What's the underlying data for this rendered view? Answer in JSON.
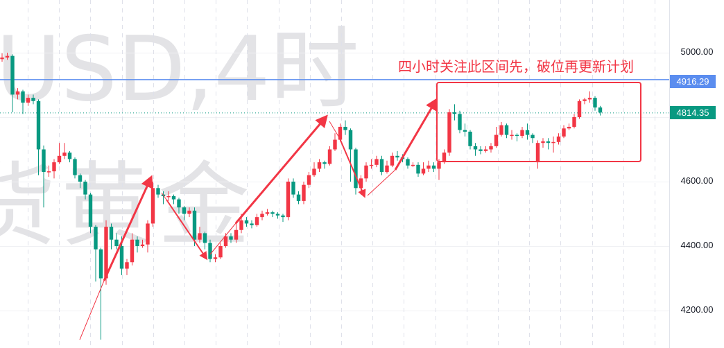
{
  "watermark": {
    "line1": "USD,4时",
    "line2": "货黄金"
  },
  "annotation": "四小时关注此区间先，破位再更新计划",
  "colors": {
    "up": "#f23645",
    "down": "#089981",
    "annotation": "#f23645",
    "resistance_line": "#5b8def",
    "last_price": "#089981"
  },
  "chart_data": {
    "type": "candlestick",
    "ylim": [
      4090,
      5160
    ],
    "y_ticks": [
      "5000.00",
      "4600.00",
      "4400.00",
      "4200.00"
    ],
    "y_tick_values": [
      5000,
      4600,
      4400,
      4200
    ],
    "grid": true,
    "convention": "red up, green down",
    "horizontal_line": {
      "value": 4916.29,
      "label": "4916.29"
    },
    "last_price": {
      "value": 4814.35,
      "label": "4814.35"
    },
    "zone": {
      "top": 4916,
      "bottom": 4670
    },
    "candles_ohlc": [
      [
        4980,
        4998,
        4972,
        4985
      ],
      [
        4985,
        5000,
        4978,
        4990
      ],
      [
        4990,
        4995,
        4815,
        4870
      ],
      [
        4870,
        4890,
        4855,
        4880
      ],
      [
        4880,
        4885,
        4810,
        4845
      ],
      [
        4845,
        4870,
        4835,
        4860
      ],
      [
        4860,
        4870,
        4840,
        4850
      ],
      [
        4850,
        4855,
        4620,
        4700
      ],
      [
        4700,
        4712,
        4520,
        4630
      ],
      [
        4630,
        4650,
        4615,
        4632
      ],
      [
        4632,
        4670,
        4610,
        4660
      ],
      [
        4660,
        4720,
        4655,
        4680
      ],
      [
        4680,
        4720,
        4670,
        4690
      ],
      [
        4690,
        4695,
        4660,
        4670
      ],
      [
        4670,
        4675,
        4610,
        4620
      ],
      [
        4620,
        4625,
        4580,
        4600
      ],
      [
        4600,
        4605,
        4545,
        4560
      ],
      [
        4560,
        4565,
        4440,
        4460
      ],
      [
        4460,
        4465,
        4290,
        4390
      ],
      [
        4390,
        4395,
        4110,
        4300
      ],
      [
        4300,
        4480,
        4280,
        4460
      ],
      [
        4460,
        4470,
        4390,
        4420
      ],
      [
        4420,
        4440,
        4390,
        4400
      ],
      [
        4400,
        4430,
        4310,
        4330
      ],
      [
        4330,
        4360,
        4310,
        4350
      ],
      [
        4350,
        4440,
        4340,
        4420
      ],
      [
        4420,
        4430,
        4380,
        4400
      ],
      [
        4400,
        4420,
        4395,
        4405
      ],
      [
        4405,
        4480,
        4380,
        4470
      ],
      [
        4470,
        4600,
        4460,
        4580
      ],
      [
        4580,
        4590,
        4550,
        4560
      ],
      [
        4560,
        4570,
        4530,
        4555
      ],
      [
        4555,
        4570,
        4540,
        4555
      ],
      [
        4555,
        4560,
        4530,
        4545
      ],
      [
        4545,
        4550,
        4500,
        4520
      ],
      [
        4520,
        4525,
        4480,
        4500
      ],
      [
        4500,
        4520,
        4490,
        4510
      ],
      [
        4510,
        4520,
        4400,
        4420
      ],
      [
        4420,
        4460,
        4410,
        4440
      ],
      [
        4440,
        4445,
        4390,
        4410
      ],
      [
        4410,
        4420,
        4350,
        4360
      ],
      [
        4360,
        4375,
        4350,
        4365
      ],
      [
        4365,
        4410,
        4360,
        4400
      ],
      [
        4400,
        4440,
        4395,
        4430
      ],
      [
        4430,
        4440,
        4410,
        4420
      ],
      [
        4420,
        4470,
        4410,
        4450
      ],
      [
        4450,
        4500,
        4440,
        4480
      ],
      [
        4480,
        4490,
        4460,
        4470
      ],
      [
        4470,
        4480,
        4455,
        4465
      ],
      [
        4465,
        4500,
        4460,
        4490
      ],
      [
        4490,
        4510,
        4480,
        4500
      ],
      [
        4500,
        4515,
        4495,
        4505
      ],
      [
        4505,
        4510,
        4490,
        4500
      ],
      [
        4500,
        4505,
        4485,
        4495
      ],
      [
        4495,
        4500,
        4475,
        4490
      ],
      [
        4490,
        4610,
        4480,
        4600
      ],
      [
        4600,
        4610,
        4550,
        4560
      ],
      [
        4560,
        4570,
        4530,
        4540
      ],
      [
        4540,
        4600,
        4530,
        4590
      ],
      [
        4590,
        4630,
        4580,
        4620
      ],
      [
        4620,
        4660,
        4615,
        4640
      ],
      [
        4640,
        4670,
        4630,
        4660
      ],
      [
        4660,
        4665,
        4640,
        4655
      ],
      [
        4655,
        4710,
        4650,
        4700
      ],
      [
        4700,
        4750,
        4695,
        4730
      ],
      [
        4730,
        4780,
        4725,
        4770
      ],
      [
        4770,
        4790,
        4745,
        4760
      ],
      [
        4760,
        4765,
        4600,
        4700
      ],
      [
        4700,
        4705,
        4560,
        4580
      ],
      [
        4580,
        4620,
        4560,
        4610
      ],
      [
        4610,
        4660,
        4600,
        4650
      ],
      [
        4650,
        4670,
        4640,
        4652
      ],
      [
        4652,
        4680,
        4645,
        4670
      ],
      [
        4670,
        4680,
        4620,
        4630
      ],
      [
        4630,
        4665,
        4625,
        4650
      ],
      [
        4650,
        4690,
        4645,
        4680
      ],
      [
        4680,
        4695,
        4665,
        4675
      ],
      [
        4675,
        4685,
        4660,
        4670
      ],
      [
        4670,
        4675,
        4640,
        4650
      ],
      [
        4650,
        4660,
        4645,
        4652
      ],
      [
        4652,
        4660,
        4615,
        4625
      ],
      [
        4625,
        4660,
        4620,
        4640
      ],
      [
        4640,
        4665,
        4630,
        4650
      ],
      [
        4650,
        4660,
        4630,
        4640
      ],
      [
        4640,
        4670,
        4605,
        4660
      ],
      [
        4660,
        4700,
        4655,
        4690
      ],
      [
        4690,
        4825,
        4680,
        4815
      ],
      [
        4815,
        4840,
        4790,
        4810
      ],
      [
        4810,
        4820,
        4750,
        4760
      ],
      [
        4760,
        4780,
        4740,
        4755
      ],
      [
        4755,
        4760,
        4700,
        4710
      ],
      [
        4710,
        4720,
        4680,
        4700
      ],
      [
        4700,
        4710,
        4685,
        4695
      ],
      [
        4695,
        4710,
        4690,
        4700
      ],
      [
        4700,
        4720,
        4690,
        4710
      ],
      [
        4710,
        4770,
        4705,
        4745
      ],
      [
        4745,
        4785,
        4740,
        4775
      ],
      [
        4775,
        4780,
        4735,
        4745
      ],
      [
        4745,
        4760,
        4730,
        4745
      ],
      [
        4745,
        4750,
        4725,
        4742
      ],
      [
        4742,
        4770,
        4735,
        4760
      ],
      [
        4760,
        4780,
        4730,
        4745
      ],
      [
        4745,
        4750,
        4720,
        4735
      ],
      [
        4660,
        4728,
        4640,
        4720
      ],
      [
        4720,
        4735,
        4705,
        4725
      ],
      [
        4725,
        4735,
        4700,
        4720
      ],
      [
        4720,
        4740,
        4690,
        4723
      ],
      [
        4723,
        4750,
        4715,
        4740
      ],
      [
        4740,
        4775,
        4735,
        4765
      ],
      [
        4765,
        4780,
        4760,
        4770
      ],
      [
        4770,
        4810,
        4765,
        4800
      ],
      [
        4800,
        4855,
        4795,
        4850
      ],
      [
        4850,
        4860,
        4840,
        4855
      ],
      [
        4855,
        4880,
        4845,
        4860
      ],
      [
        4860,
        4865,
        4820,
        4830
      ],
      [
        4830,
        4835,
        4805,
        4814.35
      ]
    ]
  }
}
